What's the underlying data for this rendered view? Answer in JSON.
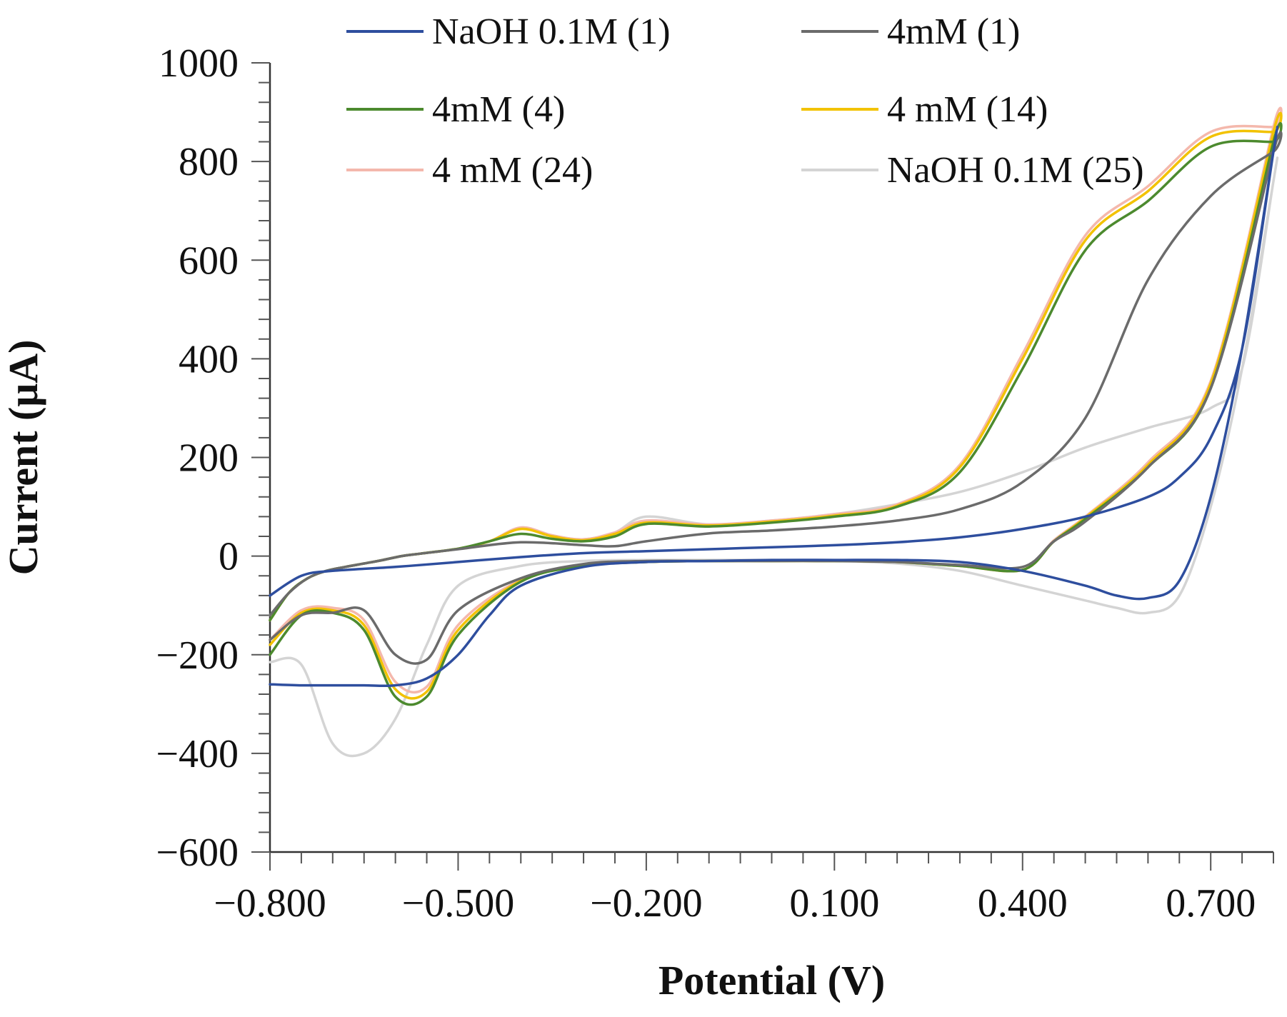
{
  "chart_data": {
    "type": "line",
    "title": "",
    "xlabel": "Potential (V)",
    "ylabel": "Current (μA)",
    "xlim": [
      -0.8,
      0.8
    ],
    "ylim": [
      -600,
      1000
    ],
    "x_ticks": [
      -0.8,
      -0.5,
      -0.2,
      0.1,
      0.4,
      0.7
    ],
    "x_tick_labels": [
      "−0.800",
      "−0.500",
      "−0.200",
      "0.100",
      "0.400",
      "0.700"
    ],
    "y_ticks": [
      1000,
      800,
      600,
      400,
      200,
      0,
      -200,
      -400,
      -600
    ],
    "y_tick_labels": [
      "1000",
      "800",
      "600",
      "400",
      "200",
      "0",
      "−200",
      "−400",
      "−600"
    ],
    "x_minor_step": 0.05,
    "y_minor_step": 40,
    "grid": false,
    "legend_position": "top",
    "series": [
      {
        "name": "NaOH 0.1M (1)",
        "color": "#2E4E9E",
        "x": [
          -0.8,
          -0.75,
          -0.7,
          -0.6,
          -0.5,
          -0.4,
          -0.3,
          -0.2,
          -0.1,
          0.0,
          0.1,
          0.2,
          0.3,
          0.4,
          0.5,
          0.6,
          0.65,
          0.7,
          0.75,
          0.8,
          0.8,
          0.75,
          0.7,
          0.65,
          0.6,
          0.55,
          0.5,
          0.4,
          0.3,
          0.2,
          0.1,
          0.0,
          -0.1,
          -0.2,
          -0.3,
          -0.4,
          -0.45,
          -0.5,
          -0.55,
          -0.6,
          -0.65,
          -0.7,
          -0.75,
          -0.8
        ],
        "y": [
          -80,
          -40,
          -30,
          -22,
          -12,
          -2,
          6,
          10,
          14,
          18,
          22,
          28,
          38,
          55,
          80,
          120,
          160,
          240,
          420,
          820,
          820,
          420,
          120,
          -50,
          -85,
          -80,
          -60,
          -30,
          -12,
          -8,
          -8,
          -8,
          -10,
          -12,
          -22,
          -60,
          -120,
          -200,
          -248,
          -262,
          -262,
          -262,
          -262,
          -260
        ]
      },
      {
        "name": "4mM (1)",
        "color": "#6B6B6B",
        "x": [
          -0.8,
          -0.77,
          -0.74,
          -0.71,
          -0.68,
          -0.65,
          -0.62,
          -0.59,
          -0.56,
          -0.5,
          -0.4,
          -0.3,
          -0.25,
          -0.2,
          -0.1,
          0.0,
          0.1,
          0.2,
          0.3,
          0.4,
          0.5,
          0.6,
          0.7,
          0.8,
          0.8,
          0.7,
          0.6,
          0.5,
          0.45,
          0.4,
          0.3,
          0.2,
          0.1,
          0.0,
          -0.1,
          -0.2,
          -0.3,
          -0.4,
          -0.5,
          -0.55,
          -0.6,
          -0.65,
          -0.7,
          -0.75,
          -0.8
        ],
        "y": [
          -120,
          -75,
          -45,
          -30,
          -22,
          -15,
          -8,
          0,
          5,
          14,
          28,
          22,
          20,
          30,
          46,
          52,
          60,
          72,
          95,
          150,
          280,
          560,
          730,
          820,
          820,
          340,
          180,
          70,
          30,
          -22,
          -18,
          -12,
          -10,
          -10,
          -10,
          -10,
          -16,
          -45,
          -110,
          -210,
          -200,
          -110,
          -115,
          -120,
          -170
        ]
      },
      {
        "name": "4mM (4)",
        "color": "#4C8A2E",
        "x": [
          -0.8,
          -0.77,
          -0.74,
          -0.71,
          -0.68,
          -0.65,
          -0.62,
          -0.59,
          -0.56,
          -0.5,
          -0.45,
          -0.4,
          -0.35,
          -0.3,
          -0.25,
          -0.2,
          -0.1,
          0.0,
          0.1,
          0.2,
          0.3,
          0.4,
          0.5,
          0.6,
          0.7,
          0.8,
          0.8,
          0.7,
          0.6,
          0.5,
          0.45,
          0.4,
          0.3,
          0.2,
          0.1,
          0.0,
          -0.1,
          -0.2,
          -0.3,
          -0.4,
          -0.5,
          -0.55,
          -0.6,
          -0.65,
          -0.7,
          -0.75,
          -0.8
        ],
        "y": [
          -130,
          -75,
          -45,
          -30,
          -22,
          -15,
          -8,
          0,
          5,
          15,
          30,
          45,
          35,
          30,
          40,
          65,
          60,
          68,
          80,
          100,
          170,
          380,
          620,
          720,
          830,
          840,
          840,
          340,
          180,
          75,
          30,
          -28,
          -20,
          -12,
          -10,
          -10,
          -10,
          -12,
          -20,
          -52,
          -160,
          -285,
          -285,
          -150,
          -115,
          -120,
          -200
        ]
      },
      {
        "name": "4 mM (14)",
        "color": "#F2C200",
        "x": [
          -0.8,
          -0.77,
          -0.74,
          -0.71,
          -0.68,
          -0.65,
          -0.62,
          -0.59,
          -0.56,
          -0.5,
          -0.45,
          -0.4,
          -0.35,
          -0.3,
          -0.25,
          -0.2,
          -0.1,
          0.0,
          0.1,
          0.2,
          0.3,
          0.4,
          0.5,
          0.6,
          0.7,
          0.8,
          0.8,
          0.7,
          0.6,
          0.5,
          0.45,
          0.4,
          0.3,
          0.2,
          0.1,
          0.0,
          -0.1,
          -0.2,
          -0.3,
          -0.4,
          -0.5,
          -0.55,
          -0.6,
          -0.65,
          -0.7,
          -0.75,
          -0.8
        ],
        "y": [
          -130,
          -75,
          -45,
          -30,
          -22,
          -15,
          -8,
          0,
          5,
          15,
          30,
          55,
          40,
          32,
          45,
          68,
          62,
          70,
          82,
          102,
          180,
          400,
          640,
          740,
          850,
          860,
          860,
          350,
          185,
          78,
          30,
          -28,
          -20,
          -12,
          -10,
          -10,
          -10,
          -12,
          -20,
          -50,
          -150,
          -275,
          -270,
          -140,
          -110,
          -115,
          -180
        ]
      },
      {
        "name": "4 mM (24)",
        "color": "#F4B8AC",
        "x": [
          -0.8,
          -0.77,
          -0.74,
          -0.71,
          -0.68,
          -0.65,
          -0.62,
          -0.59,
          -0.56,
          -0.5,
          -0.45,
          -0.4,
          -0.35,
          -0.3,
          -0.25,
          -0.2,
          -0.1,
          0.0,
          0.1,
          0.2,
          0.3,
          0.4,
          0.5,
          0.6,
          0.7,
          0.8,
          0.8,
          0.7,
          0.6,
          0.5,
          0.45,
          0.4,
          0.3,
          0.2,
          0.1,
          0.0,
          -0.1,
          -0.2,
          -0.3,
          -0.4,
          -0.5,
          -0.55,
          -0.6,
          -0.65,
          -0.7,
          -0.75,
          -0.8
        ],
        "y": [
          -130,
          -75,
          -45,
          -30,
          -22,
          -15,
          -8,
          0,
          5,
          15,
          30,
          58,
          42,
          34,
          48,
          72,
          64,
          72,
          85,
          105,
          185,
          410,
          650,
          750,
          860,
          870,
          870,
          355,
          190,
          80,
          32,
          -28,
          -20,
          -12,
          -10,
          -10,
          -10,
          -12,
          -20,
          -48,
          -140,
          -265,
          -255,
          -130,
          -105,
          -110,
          -170
        ]
      },
      {
        "name": "NaOH 0.1M (25)",
        "color": "#D4D4D4",
        "x": [
          -0.8,
          -0.77,
          -0.74,
          -0.71,
          -0.68,
          -0.65,
          -0.62,
          -0.59,
          -0.56,
          -0.5,
          -0.45,
          -0.4,
          -0.35,
          -0.3,
          -0.25,
          -0.2,
          -0.1,
          0.0,
          0.1,
          0.2,
          0.3,
          0.4,
          0.5,
          0.6,
          0.7,
          0.75,
          0.8,
          0.8,
          0.75,
          0.7,
          0.65,
          0.6,
          0.55,
          0.5,
          0.4,
          0.3,
          0.2,
          0.1,
          0.0,
          -0.1,
          -0.2,
          -0.3,
          -0.4,
          -0.5,
          -0.55,
          -0.6,
          -0.65,
          -0.7,
          -0.75,
          -0.8
        ],
        "y": [
          -120,
          -75,
          -45,
          -30,
          -22,
          -15,
          -8,
          0,
          5,
          15,
          30,
          58,
          42,
          34,
          48,
          80,
          64,
          72,
          85,
          105,
          130,
          170,
          220,
          260,
          300,
          380,
          760,
          760,
          380,
          100,
          -80,
          -115,
          -105,
          -90,
          -60,
          -30,
          -15,
          -10,
          -8,
          -8,
          -8,
          -10,
          -20,
          -60,
          -180,
          -330,
          -400,
          -380,
          -220,
          -215
        ]
      }
    ]
  }
}
